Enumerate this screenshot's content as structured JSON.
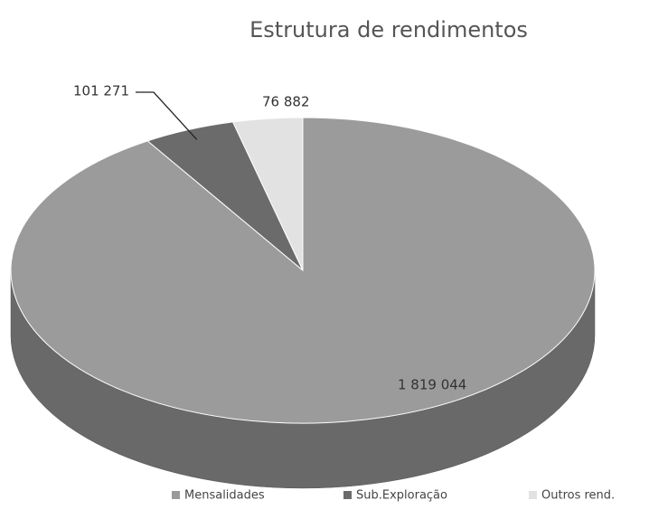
{
  "chart_data": {
    "type": "pie",
    "title": "Estrutura de rendimentos",
    "categories": [
      "Mensalidades",
      "Sub.Exploração",
      "Outros rend."
    ],
    "values": [
      1819044,
      101271,
      76882
    ],
    "value_labels": [
      "1 819 044",
      "101 271",
      "76 882"
    ],
    "colors": [
      "#9b9b9b",
      "#6b6b6b",
      "#e2e2e2"
    ],
    "legend": "bottom"
  }
}
